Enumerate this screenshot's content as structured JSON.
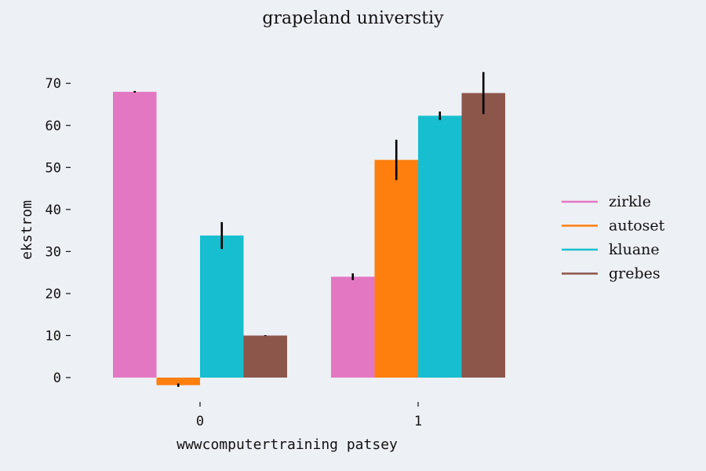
{
  "chart_data": {
    "type": "bar",
    "title": "grapeland universtiy",
    "xlabel": "wwwcomputertraining patsey",
    "ylabel": "ekstrom",
    "categories": [
      "0",
      "1"
    ],
    "ylim": [
      -4,
      74
    ],
    "yticks": [
      0,
      10,
      20,
      30,
      40,
      50,
      60,
      70
    ],
    "grid": false,
    "legend_position": "right",
    "series": [
      {
        "name": "zirkle",
        "color": "#e377c2",
        "values": [
          68,
          24
        ],
        "errors": [
          0.2,
          0.8
        ]
      },
      {
        "name": "autoset",
        "color": "#ff7f0e",
        "values": [
          -1.8,
          51.8
        ],
        "errors": [
          0.4,
          4.8
        ]
      },
      {
        "name": "kluane",
        "color": "#17becf",
        "values": [
          33.8,
          62.3
        ],
        "errors": [
          3.2,
          1.0
        ]
      },
      {
        "name": "grebes",
        "color": "#8c564b",
        "values": [
          10,
          67.7
        ],
        "errors": [
          0.1,
          5.0
        ]
      }
    ]
  }
}
